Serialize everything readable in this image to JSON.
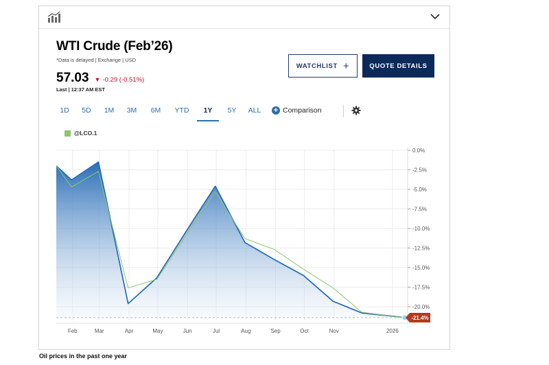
{
  "header": {
    "chart_icon": "chart-trend-icon",
    "expand_icon": "chevron-down-icon"
  },
  "quote": {
    "title": "WTI Crude (Feb’26)",
    "note": "*Data is delayed | Exchange | USD",
    "price": "57.03",
    "change": "-0.29 (-0.51%)",
    "change_icon": "down-triangle-icon",
    "last": "Last | 12:37 AM EST",
    "down_color": "#c8102e"
  },
  "buttons": {
    "watchlist": "WATCHLIST",
    "watchlist_icon": "plus-icon",
    "quote_details": "QUOTE DETAILS"
  },
  "ranges": [
    "1D",
    "5D",
    "1M",
    "3M",
    "6M",
    "YTD",
    "1Y",
    "5Y",
    "ALL"
  ],
  "active_range": "1Y",
  "comparison_label": "Comparison",
  "settings_icon": "gear-icon",
  "legend_label": "@LCO.1",
  "caption": "Oil prices in the past one year",
  "chart_data": {
    "type": "area",
    "x": [
      "2025-01-15",
      "2025-01-31",
      "2025-02-28",
      "2025-03-31",
      "2025-04-30",
      "2025-05-31",
      "2025-06-30",
      "2025-07-31",
      "2025-08-31",
      "2025-09-30",
      "2025-10-31",
      "2025-11-30",
      "2025-12-31",
      "2026-01-14"
    ],
    "series": [
      {
        "values": [
          -2.0,
          -3.8,
          -1.5,
          -19.6,
          -16.3,
          -10.3,
          -4.6,
          -11.8,
          -14.0,
          -16.0,
          -19.3,
          -20.8,
          -21.2,
          -21.4
        ],
        "color": "#2a6fb8",
        "fill": true
      },
      {
        "name": "@LCO.1",
        "values": [
          -2.0,
          -4.7,
          -2.7,
          -17.6,
          -16.5,
          -10.8,
          -5.3,
          -11.3,
          -12.7,
          -15.2,
          -17.6,
          -20.7,
          -21.2,
          -21.4
        ],
        "color": "#8fc56b"
      }
    ],
    "y_ticks": [
      "0.0%",
      "-2.5%",
      "-5.0%",
      "-7.5%",
      "-10.0%",
      "-12.5%",
      "-15.0%",
      "-17.5%",
      "-20.0%"
    ],
    "ylim": [
      -21.4,
      0
    ],
    "x_tick_labels": [
      "Feb",
      "Mar",
      "Apr",
      "May",
      "Jun",
      "Jul",
      "Aug",
      "Sep",
      "Oct",
      "Nov",
      "2026"
    ],
    "last_label": "-21.4%",
    "last_label_color": "#b5391c",
    "grid": true,
    "y_axis_side": "right",
    "title": "",
    "xlabel": "",
    "ylabel": ""
  }
}
